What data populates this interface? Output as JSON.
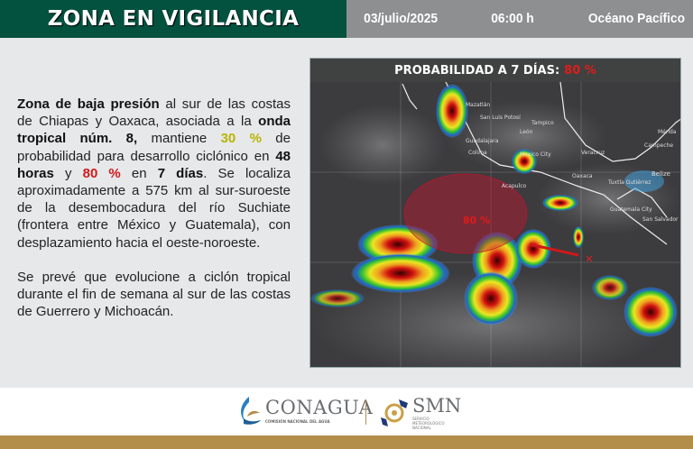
{
  "header": {
    "title": "ZONA EN VIGILANCIA",
    "date": "03/julio/2025",
    "time": "06:00 h",
    "region": "Océano Pacífico"
  },
  "body": {
    "p1": {
      "t1": "Zona de baja presión",
      "t2": " al sur de las costas de Chiapas y Oaxaca, asociada a la ",
      "t3": "onda tropical núm. 8,",
      "t4": " mantiene ",
      "t5": "30 %",
      "t6": " de probabilidad para desarrollo ciclónico en ",
      "t7": "48 horas",
      "t8": " y ",
      "t9": "80 %",
      "t10": " en ",
      "t11": "7 días",
      "t12": ". Se localiza aproximadamente a 575 km al sur-suroeste de la desembocadura del río Suchiate (frontera entre México y Guatemala), con desplazamiento hacia el oeste-noroeste."
    },
    "p2": "Se prevé que evolucione a ciclón tropical durante el fin de semana al sur de las costas de Guerrero y Michoacán."
  },
  "map": {
    "title": "PROBABILIDAD A 7 DÍAS:",
    "title_value": "80 %",
    "zone_label": "80 %",
    "zone_color": "#c0162e",
    "cities": [
      "Mazatlán",
      "San Luis Potosí",
      "Tampico",
      "León",
      "Guadalajara",
      "Colima",
      "Mexico City",
      "Veracruz",
      "Mérida",
      "Campeche",
      "Oaxaca",
      "Acapulco",
      "Tuxtla Gutiérrez",
      "Guatemala City",
      "San Salvador",
      "Belize"
    ]
  },
  "footer": {
    "conagua": "CONAGUA",
    "conagua_sub": "COMISIÓN NACIONAL DEL AGUA",
    "smn": "SMN",
    "smn_sub": "SERVICIO METEOROLÓGICO NACIONAL"
  },
  "colors": {
    "header_green": "#03513f",
    "header_gray": "#8e8f91",
    "gold": "#b38e4a",
    "highlight_30": "#b8b400",
    "highlight_80": "#d21a1a"
  }
}
